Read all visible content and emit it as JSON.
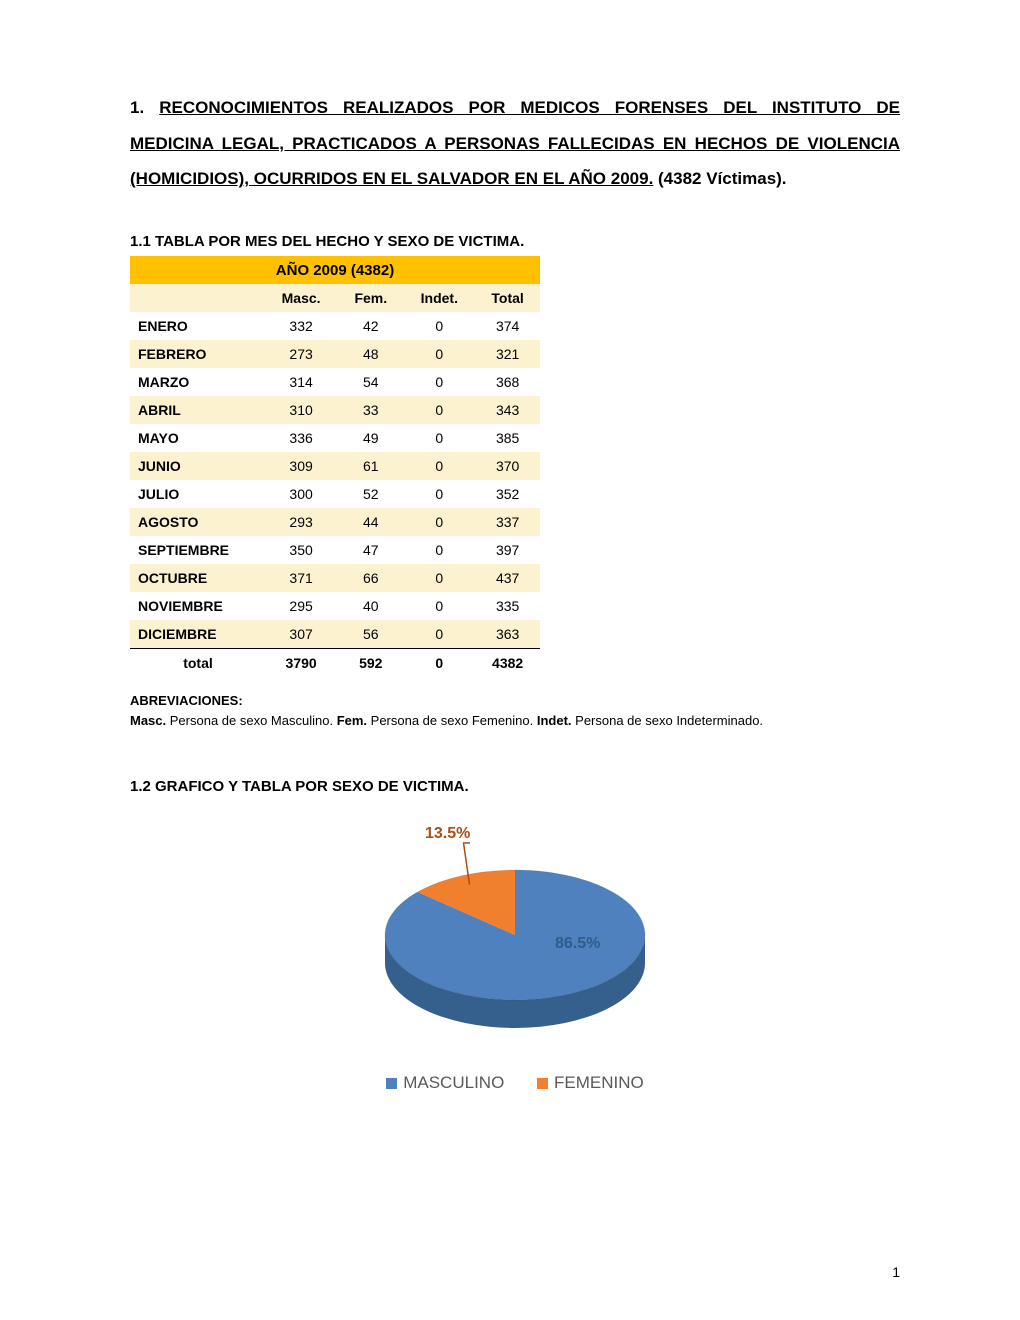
{
  "heading": {
    "number": "1.",
    "underlined": "RECONOCIMIENTOS REALIZADOS POR MEDICOS FORENSES DEL INSTITUTO DE MEDICINA LEGAL, PRACTICADOS A PERSONAS FALLECIDAS EN HECHOS DE VIOLENCIA (HOMICIDIOS), OCURRIDOS EN EL SALVADOR EN EL AÑO 2009.",
    "suffix": "  (4382 Víctimas)."
  },
  "table_section_title": "1.1 TABLA  POR MES DEL HECHO Y SEXO DE VICTIMA.",
  "table": {
    "title": "AÑO 2009 (4382)",
    "header_bg": "#ffc000",
    "subheader_bg": "#fdf2d0",
    "alt_row_bg": "#fdf2d0",
    "columns": [
      "",
      "Masc.",
      "Fem.",
      "Indet.",
      "Total"
    ],
    "rows": [
      {
        "month": "ENERO",
        "masc": 332,
        "fem": 42,
        "indet": 0,
        "total": 374,
        "alt": false
      },
      {
        "month": "FEBRERO",
        "masc": 273,
        "fem": 48,
        "indet": 0,
        "total": 321,
        "alt": true
      },
      {
        "month": "MARZO",
        "masc": 314,
        "fem": 54,
        "indet": 0,
        "total": 368,
        "alt": false
      },
      {
        "month": "ABRIL",
        "masc": 310,
        "fem": 33,
        "indet": 0,
        "total": 343,
        "alt": true
      },
      {
        "month": "MAYO",
        "masc": 336,
        "fem": 49,
        "indet": 0,
        "total": 385,
        "alt": false
      },
      {
        "month": "JUNIO",
        "masc": 309,
        "fem": 61,
        "indet": 0,
        "total": 370,
        "alt": true
      },
      {
        "month": "JULIO",
        "masc": 300,
        "fem": 52,
        "indet": 0,
        "total": 352,
        "alt": false
      },
      {
        "month": "AGOSTO",
        "masc": 293,
        "fem": 44,
        "indet": 0,
        "total": 337,
        "alt": true
      },
      {
        "month": "SEPTIEMBRE",
        "masc": 350,
        "fem": 47,
        "indet": 0,
        "total": 397,
        "alt": false
      },
      {
        "month": "OCTUBRE",
        "masc": 371,
        "fem": 66,
        "indet": 0,
        "total": 437,
        "alt": true
      },
      {
        "month": "NOVIEMBRE",
        "masc": 295,
        "fem": 40,
        "indet": 0,
        "total": 335,
        "alt": false
      },
      {
        "month": "DICIEMBRE",
        "masc": 307,
        "fem": 56,
        "indet": 0,
        "total": 363,
        "alt": true
      }
    ],
    "total_label": "total",
    "totals": {
      "masc": 3790,
      "fem": 592,
      "indet": 0,
      "total": 4382
    }
  },
  "abbrev": {
    "title": "ABREVIACIONES:",
    "items": [
      {
        "abbr": "Masc.",
        "desc": " Persona de sexo Masculino. "
      },
      {
        "abbr": "Fem.",
        "desc": "  Persona de sexo Femenino. "
      },
      {
        "abbr": "Indet.",
        "desc": " Persona de sexo Indeterminado."
      }
    ]
  },
  "chart_section_title": "1.2 GRAFICO Y TABLA POR SEXO DE VICTIMA.",
  "pie": {
    "type": "pie-3d",
    "slices": [
      {
        "label": "MASCULINO",
        "pct_label": "86.5%",
        "value": 86.5,
        "color_top": "#4e81bd",
        "color_side": "#355f8c"
      },
      {
        "label": "FEMENINO",
        "pct_label": "13.5%",
        "value": 13.5,
        "color_top": "#f07f2e",
        "color_side": "#b95c1c"
      }
    ],
    "label_color_big": "#2e5d8b",
    "label_color_small": "#a94f14",
    "label_fontsize": 16,
    "legend_fontsize": 17,
    "legend_color": "#595959",
    "background": "#ffffff"
  },
  "page_number": "1"
}
